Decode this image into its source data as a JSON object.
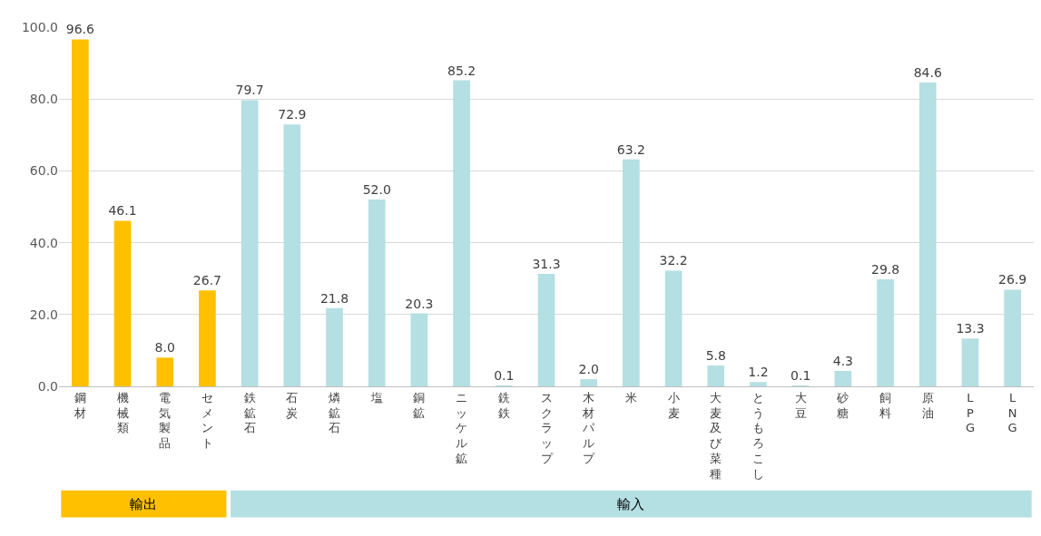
{
  "chart_data": {
    "type": "bar",
    "categories": [
      "鋼材",
      "機械類",
      "電気製品",
      "セメント",
      "鉄鉱石",
      "石炭",
      "燐鉱石",
      "塩",
      "銅鉱",
      "ニッケル鉱",
      "銑鉄",
      "スクラップ",
      "木材パルプ",
      "米",
      "小麦",
      "大麦及び菜種",
      "とうもろこし",
      "大豆",
      "砂糖",
      "飼料",
      "原油",
      "LPG",
      "LNG"
    ],
    "values": [
      96.6,
      46.1,
      8.0,
      26.7,
      79.7,
      72.9,
      21.8,
      52.0,
      20.3,
      85.2,
      0.1,
      31.3,
      2.0,
      63.2,
      32.2,
      5.8,
      1.2,
      0.1,
      4.3,
      29.8,
      84.6,
      13.3,
      26.9
    ],
    "colors": [
      "#ffc000",
      "#ffc000",
      "#ffc000",
      "#ffc000",
      "#b4dfe3",
      "#b4dfe3",
      "#b4dfe3",
      "#b4dfe3",
      "#b4dfe3",
      "#b4dfe3",
      "#b4dfe3",
      "#b4dfe3",
      "#b4dfe3",
      "#b4dfe3",
      "#b4dfe3",
      "#b4dfe3",
      "#b4dfe3",
      "#b4dfe3",
      "#b4dfe3",
      "#b4dfe3",
      "#b4dfe3",
      "#b4dfe3",
      "#b4dfe3"
    ],
    "annotations": [
      "輸出",
      "輸入"
    ],
    "ylim": [
      0,
      100
    ],
    "yticks": [
      {
        "value": 0,
        "label": "0.0"
      },
      {
        "value": 20,
        "label": "20.0"
      },
      {
        "value": 40,
        "label": "40.0"
      },
      {
        "value": 60,
        "label": "60.0"
      },
      {
        "value": 80,
        "label": "80.0"
      },
      {
        "value": 100,
        "label": "100.0"
      }
    ],
    "grid": "y",
    "value_labels": [
      "96.6",
      "46.1",
      "8.0",
      "26.7",
      "79.7",
      "72.9",
      "21.8",
      "52.0",
      "20.3",
      "85.2",
      "0.1",
      "31.3",
      "2.0",
      "63.2",
      "32.2",
      "5.8",
      "1.2",
      "0.1",
      "4.3",
      "29.8",
      "84.6",
      "13.3",
      "26.9"
    ]
  }
}
